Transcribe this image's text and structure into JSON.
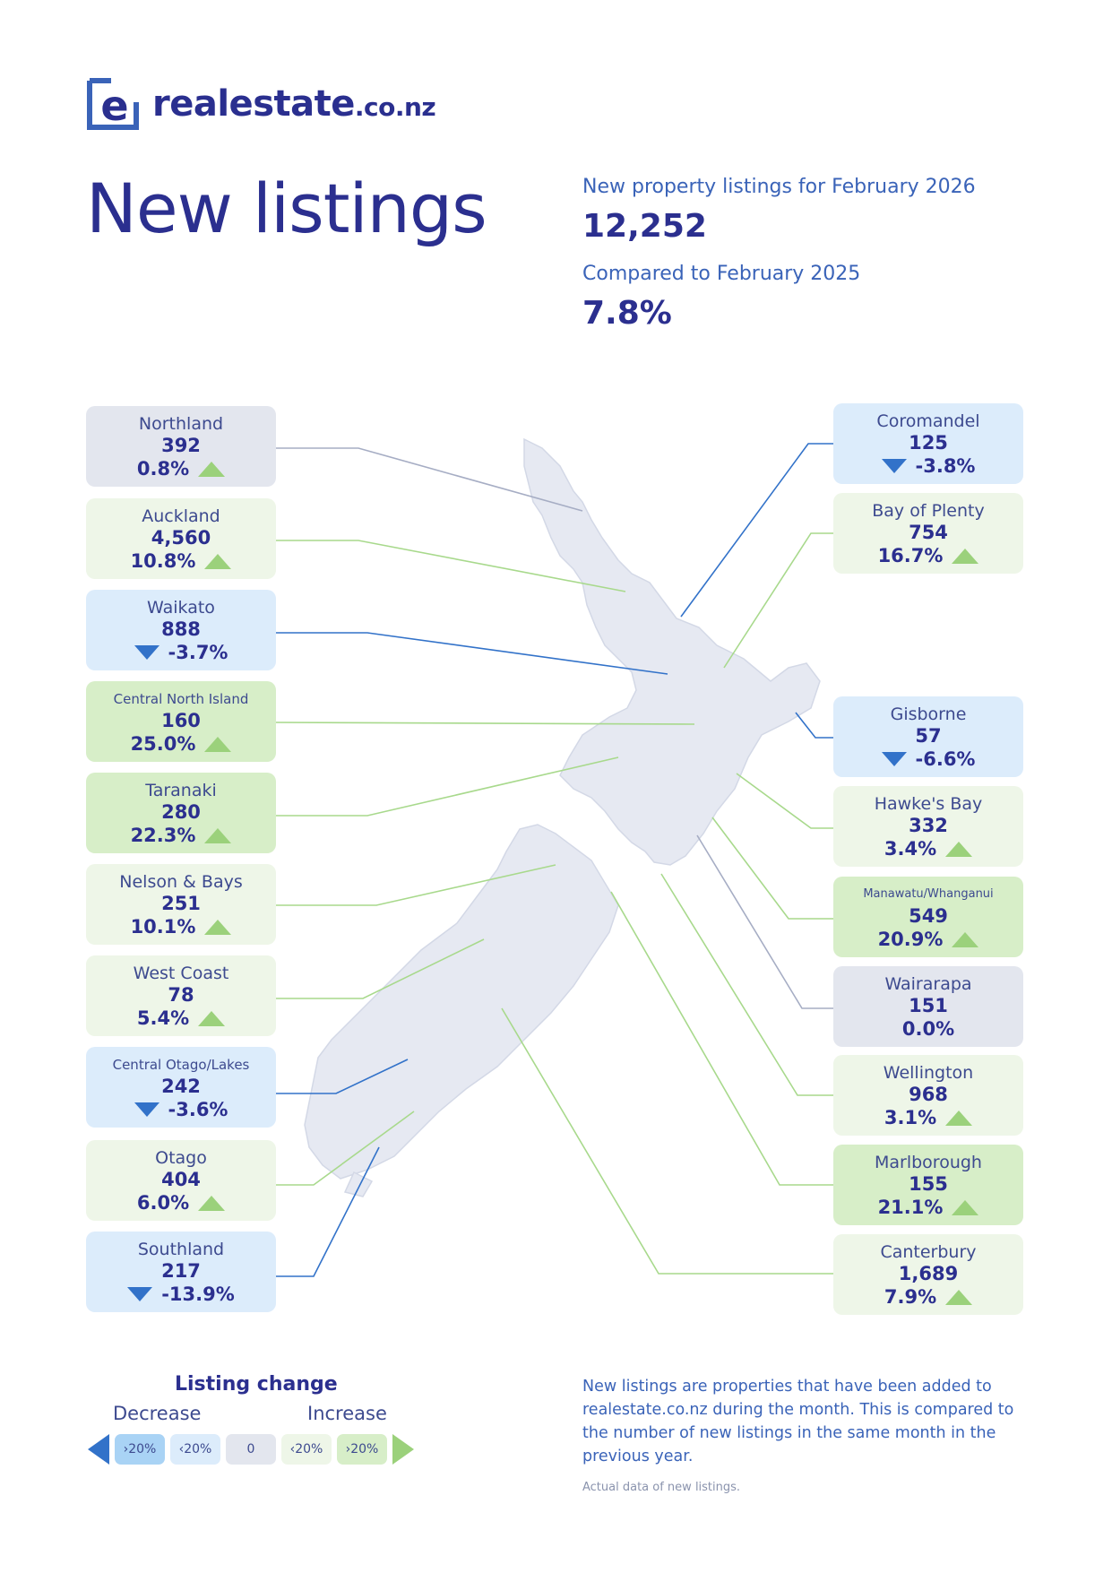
{
  "brand": {
    "name": "realestate",
    "tld": ".co.nz",
    "logo_letter": "e",
    "color": "#2a2f8f",
    "accent": "#3a63b8"
  },
  "page_title": "New listings",
  "summary": {
    "listings_label": "New property listings for February 2026",
    "listings_value": "12,252",
    "compare_label": "Compared to February 2025",
    "compare_value": "7.8%"
  },
  "regions": {
    "northland": {
      "name": "Northland",
      "count": "392",
      "change": "0.8%",
      "direction": "up",
      "level": "neutral"
    },
    "auckland": {
      "name": "Auckland",
      "count": "4,560",
      "change": "10.8%",
      "direction": "up",
      "level": "increase"
    },
    "waikato": {
      "name": "Waikato",
      "count": "888",
      "change": "-3.7%",
      "direction": "down",
      "level": "decrease"
    },
    "central_north_island": {
      "name": "Central North Island",
      "count": "160",
      "change": "25.0%",
      "direction": "up",
      "level": "strong-increase"
    },
    "taranaki": {
      "name": "Taranaki",
      "count": "280",
      "change": "22.3%",
      "direction": "up",
      "level": "strong-increase"
    },
    "nelson_bays": {
      "name": "Nelson & Bays",
      "count": "251",
      "change": "10.1%",
      "direction": "up",
      "level": "increase"
    },
    "west_coast": {
      "name": "West Coast",
      "count": "78",
      "change": "5.4%",
      "direction": "up",
      "level": "increase"
    },
    "central_otago_lakes": {
      "name": "Central Otago/Lakes",
      "count": "242",
      "change": "-3.6%",
      "direction": "down",
      "level": "decrease"
    },
    "otago": {
      "name": "Otago",
      "count": "404",
      "change": "6.0%",
      "direction": "up",
      "level": "increase"
    },
    "southland": {
      "name": "Southland",
      "count": "217",
      "change": "-13.9%",
      "direction": "down",
      "level": "decrease"
    },
    "coromandel": {
      "name": "Coromandel",
      "count": "125",
      "change": "-3.8%",
      "direction": "down",
      "level": "decrease"
    },
    "bay_of_plenty": {
      "name": "Bay of Plenty",
      "count": "754",
      "change": "16.7%",
      "direction": "up",
      "level": "increase"
    },
    "gisborne": {
      "name": "Gisborne",
      "count": "57",
      "change": "-6.6%",
      "direction": "down",
      "level": "decrease"
    },
    "hawkes_bay": {
      "name": "Hawke's Bay",
      "count": "332",
      "change": "3.4%",
      "direction": "up",
      "level": "increase"
    },
    "manawatu_whanganui": {
      "name": "Manawatu/Whanganui",
      "count": "549",
      "change": "20.9%",
      "direction": "up",
      "level": "strong-increase"
    },
    "wairarapa": {
      "name": "Wairarapa",
      "count": "151",
      "change": "0.0%",
      "direction": "none",
      "level": "neutral"
    },
    "wellington": {
      "name": "Wellington",
      "count": "968",
      "change": "3.1%",
      "direction": "up",
      "level": "increase"
    },
    "marlborough": {
      "name": "Marlborough",
      "count": "155",
      "change": "21.1%",
      "direction": "up",
      "level": "strong-increase"
    },
    "canterbury": {
      "name": "Canterbury",
      "count": "1,689",
      "change": "7.9%",
      "direction": "up",
      "level": "increase"
    }
  },
  "legend": {
    "title": "Listing change",
    "decrease_label": "Decrease",
    "increase_label": "Increase",
    "chip_strong_decrease": "›20%",
    "chip_decrease": "‹20%",
    "chip_neutral": "0",
    "chip_increase": "‹20%",
    "chip_strong_increase": "›20%",
    "colors": {
      "strong_decrease": "#a9d3f5",
      "decrease": "#dcecfb",
      "neutral": "#e3e6ee",
      "increase": "#eef6e8",
      "strong_increase": "#d7eec8",
      "down_arrow": "#3272c9",
      "up_arrow": "#9bd17b"
    }
  },
  "note": "New listings are properties that have been added to realestate.co.nz during the month. This is compared to the number of new listings in the same month in the previous year.",
  "footnote": "Actual data of new listings."
}
